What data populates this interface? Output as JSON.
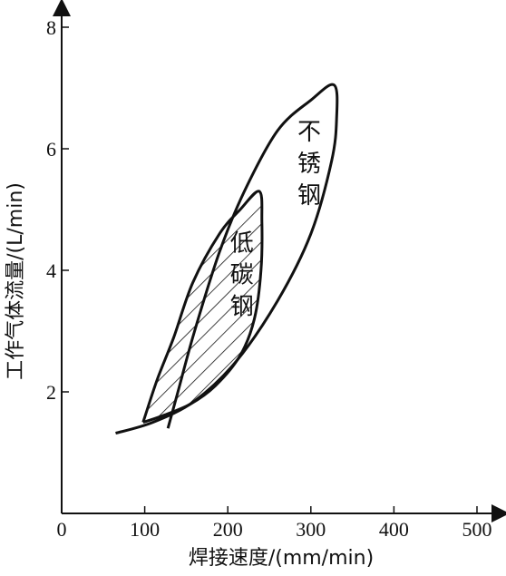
{
  "chart_data": {
    "type": "area",
    "title": "",
    "xlabel": "焊接速度/(mm/min)",
    "ylabel": "工作气体流量/(L/min)",
    "xlim": [
      0,
      500
    ],
    "ylim": [
      0,
      8
    ],
    "xticks": [
      0,
      100,
      200,
      300,
      400,
      500
    ],
    "yticks": [
      2,
      4,
      6,
      8
    ],
    "grid": false,
    "regions": [
      {
        "label_chars": [
          "不",
          "锈",
          "钢"
        ],
        "fill": "none",
        "outline": [
          [
            65,
            1.32
          ],
          [
            110,
            1.5
          ],
          [
            160,
            1.85
          ],
          [
            210,
            2.5
          ],
          [
            260,
            3.5
          ],
          [
            300,
            4.6
          ],
          [
            325,
            5.8
          ],
          [
            331,
            6.5
          ],
          [
            328,
            7.05
          ],
          [
            300,
            6.8
          ],
          [
            260,
            6.3
          ],
          [
            220,
            5.3
          ],
          [
            190,
            4.3
          ],
          [
            160,
            3.0
          ],
          [
            140,
            2.0
          ],
          [
            128,
            1.4
          ]
        ]
      },
      {
        "label_chars": [
          "低",
          "碳",
          "钢"
        ],
        "fill": "hatch",
        "outline": [
          [
            98,
            1.5
          ],
          [
            115,
            2.2
          ],
          [
            135,
            2.9
          ],
          [
            158,
            3.8
          ],
          [
            190,
            4.6
          ],
          [
            215,
            5.0
          ],
          [
            238,
            5.3
          ],
          [
            241,
            4.8
          ],
          [
            240,
            4.0
          ],
          [
            232,
            3.2
          ],
          [
            215,
            2.6
          ],
          [
            185,
            2.1
          ],
          [
            155,
            1.8
          ],
          [
            120,
            1.6
          ],
          [
            98,
            1.5
          ]
        ]
      }
    ]
  }
}
